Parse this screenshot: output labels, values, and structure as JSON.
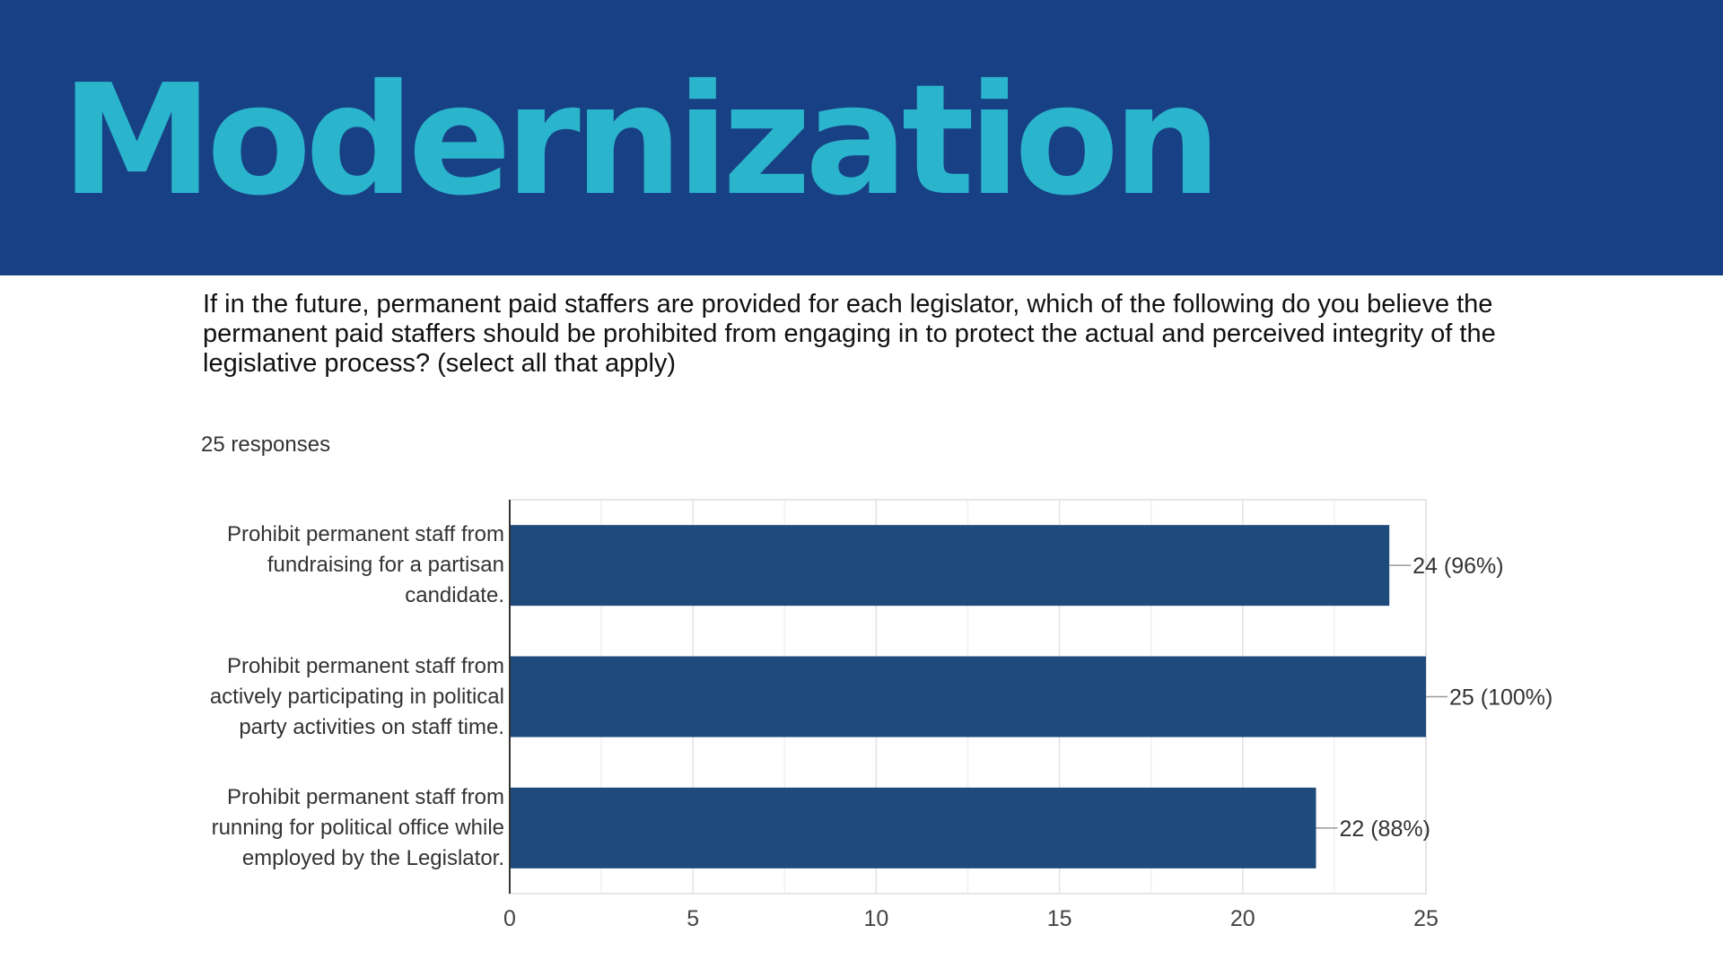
{
  "header": {
    "title": "Modernization"
  },
  "question": {
    "text": "If in the future, permanent paid staffers are provided for each legislator, which of the following do you believe the permanent paid staffers should be prohibited from engaging in to protect the actual and perceived integrity of the legislative process? (select all that apply)",
    "responses": "25 responses"
  },
  "colors": {
    "banner": "#184185",
    "title": "#2ab5cc",
    "bar": "#1f4a7c"
  },
  "chart_data": {
    "type": "bar",
    "orientation": "horizontal",
    "categories": [
      [
        "Prohibit permanent staff from",
        "fundraising for a partisan",
        "candidate."
      ],
      [
        "Prohibit permanent staff from",
        "actively participating in political",
        "party activities on staff time."
      ],
      [
        "Prohibit permanent staff from",
        "running for political office while",
        "employed by the Legislator."
      ]
    ],
    "values": [
      24,
      25,
      22
    ],
    "data_labels": [
      "24 (96%)",
      "25 (100%)",
      "22 (88%)"
    ],
    "xlim": [
      0,
      25
    ],
    "xticks": [
      "0",
      "5",
      "10",
      "15",
      "20",
      "25"
    ],
    "grid": true
  }
}
